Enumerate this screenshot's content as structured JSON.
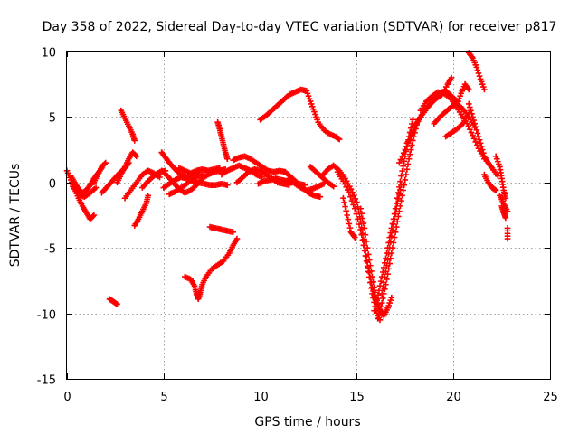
{
  "chart_data": {
    "type": "scatter",
    "title": "Day 358 of 2022, Sidereal Day-to-day VTEC variation (SDTVAR) for receiver p817",
    "xlabel": "GPS time / hours",
    "ylabel": "SDTVAR / TECUs",
    "xlim": [
      0,
      25
    ],
    "ylim": [
      -15,
      10
    ],
    "xticks": [
      "0",
      "5",
      "10",
      "15",
      "20",
      "25"
    ],
    "yticks": [
      "-15",
      "-10",
      "-5",
      "0",
      "5",
      "10"
    ],
    "grid": true,
    "marker": "plus",
    "color": "#ff0000",
    "tracks": [
      [
        [
          0.0,
          0.9
        ],
        [
          0.2,
          0.2
        ],
        [
          0.4,
          -0.5
        ],
        [
          0.6,
          -1.2
        ],
        [
          0.8,
          -1.8
        ],
        [
          1.0,
          -2.3
        ],
        [
          1.2,
          -2.8
        ],
        [
          1.4,
          -2.5
        ]
      ],
      [
        [
          0.2,
          0.5
        ],
        [
          0.4,
          0.0
        ],
        [
          0.6,
          -0.5
        ],
        [
          0.8,
          -0.8
        ],
        [
          1.0,
          -0.6
        ],
        [
          1.2,
          -0.2
        ],
        [
          1.4,
          0.3
        ],
        [
          1.6,
          0.7
        ],
        [
          1.8,
          1.1
        ]
      ],
      [
        [
          0.3,
          -0.3
        ],
        [
          0.6,
          -0.9
        ],
        [
          0.9,
          -1.1
        ],
        [
          1.2,
          -0.8
        ],
        [
          1.5,
          -0.4
        ]
      ],
      [
        [
          1.4,
          0.0
        ],
        [
          1.6,
          0.6
        ],
        [
          1.8,
          1.2
        ],
        [
          2.0,
          1.5
        ]
      ],
      [
        [
          1.8,
          -0.8
        ],
        [
          2.1,
          -0.3
        ],
        [
          2.4,
          0.2
        ],
        [
          2.7,
          0.7
        ],
        [
          3.0,
          1.1
        ],
        [
          3.2,
          1.5
        ]
      ],
      [
        [
          2.6,
          0.0
        ],
        [
          2.8,
          0.6
        ],
        [
          3.0,
          1.2
        ],
        [
          3.2,
          1.8
        ],
        [
          3.4,
          2.3
        ],
        [
          3.6,
          2.0
        ]
      ],
      [
        [
          2.8,
          5.5
        ],
        [
          3.0,
          4.9
        ],
        [
          3.2,
          4.3
        ],
        [
          3.4,
          3.7
        ],
        [
          3.5,
          3.2
        ]
      ],
      [
        [
          2.2,
          -8.9
        ],
        [
          2.4,
          -9.1
        ],
        [
          2.6,
          -9.3
        ]
      ],
      [
        [
          3.5,
          -3.3
        ],
        [
          3.7,
          -2.8
        ],
        [
          3.9,
          -2.2
        ],
        [
          4.1,
          -1.6
        ],
        [
          4.2,
          -1.0
        ]
      ],
      [
        [
          3.0,
          -1.2
        ],
        [
          3.3,
          -0.6
        ],
        [
          3.6,
          0.0
        ],
        [
          3.9,
          0.6
        ],
        [
          4.2,
          0.9
        ],
        [
          4.5,
          0.7
        ],
        [
          4.8,
          0.4
        ]
      ],
      [
        [
          3.9,
          -0.4
        ],
        [
          4.2,
          0.1
        ],
        [
          4.5,
          0.5
        ],
        [
          4.8,
          0.8
        ],
        [
          5.1,
          0.9
        ]
      ],
      [
        [
          4.9,
          2.3
        ],
        [
          5.1,
          1.9
        ],
        [
          5.3,
          1.5
        ],
        [
          5.6,
          1.0
        ],
        [
          5.9,
          0.6
        ],
        [
          6.2,
          0.4
        ],
        [
          6.5,
          0.6
        ],
        [
          6.8,
          0.9
        ]
      ],
      [
        [
          4.9,
          0.9
        ],
        [
          5.2,
          0.5
        ],
        [
          5.5,
          0.0
        ],
        [
          5.8,
          -0.5
        ],
        [
          6.1,
          -0.8
        ],
        [
          6.4,
          -0.6
        ],
        [
          6.7,
          -0.2
        ],
        [
          7.0,
          0.3
        ],
        [
          7.3,
          0.6
        ],
        [
          7.6,
          0.8
        ],
        [
          7.9,
          0.9
        ],
        [
          8.2,
          1.0
        ]
      ],
      [
        [
          5.0,
          -0.4
        ],
        [
          5.3,
          -0.1
        ],
        [
          5.6,
          0.2
        ],
        [
          5.9,
          0.4
        ],
        [
          6.2,
          0.3
        ],
        [
          6.5,
          0.1
        ],
        [
          6.8,
          0.0
        ],
        [
          7.1,
          -0.1
        ],
        [
          7.4,
          -0.2
        ],
        [
          7.7,
          -0.2
        ],
        [
          8.0,
          -0.1
        ],
        [
          8.3,
          -0.2
        ]
      ],
      [
        [
          5.3,
          -0.9
        ],
        [
          5.6,
          -0.7
        ],
        [
          5.9,
          -0.4
        ],
        [
          6.2,
          -0.1
        ],
        [
          6.5,
          0.3
        ],
        [
          6.8,
          0.5
        ],
        [
          7.1,
          0.6
        ]
      ],
      [
        [
          5.8,
          1.1
        ],
        [
          6.1,
          0.9
        ],
        [
          6.4,
          0.7
        ],
        [
          6.7,
          0.9
        ],
        [
          7.0,
          1.0
        ],
        [
          7.3,
          0.9
        ],
        [
          7.6,
          1.0
        ],
        [
          7.9,
          1.1
        ]
      ],
      [
        [
          6.1,
          -7.2
        ],
        [
          6.4,
          -7.4
        ],
        [
          6.6,
          -7.9
        ],
        [
          6.7,
          -8.5
        ],
        [
          6.8,
          -8.9
        ],
        [
          6.9,
          -8.4
        ],
        [
          7.0,
          -7.8
        ],
        [
          7.2,
          -7.2
        ],
        [
          7.5,
          -6.6
        ],
        [
          7.8,
          -6.3
        ],
        [
          8.1,
          -6.0
        ],
        [
          8.4,
          -5.4
        ],
        [
          8.6,
          -4.8
        ],
        [
          8.8,
          -4.3
        ]
      ],
      [
        [
          7.4,
          -3.4
        ],
        [
          7.7,
          -3.5
        ],
        [
          8.0,
          -3.6
        ],
        [
          8.3,
          -3.7
        ],
        [
          8.6,
          -3.8
        ]
      ],
      [
        [
          7.8,
          4.6
        ],
        [
          7.9,
          4.1
        ],
        [
          8.0,
          3.5
        ],
        [
          8.1,
          2.9
        ],
        [
          8.2,
          2.3
        ],
        [
          8.3,
          1.8
        ]
      ],
      [
        [
          8.0,
          0.6
        ],
        [
          8.3,
          0.9
        ],
        [
          8.6,
          1.1
        ],
        [
          8.9,
          1.3
        ],
        [
          9.2,
          1.1
        ],
        [
          9.5,
          0.9
        ],
        [
          9.8,
          0.6
        ],
        [
          10.1,
          0.4
        ]
      ],
      [
        [
          8.6,
          1.7
        ],
        [
          8.9,
          1.9
        ],
        [
          9.2,
          2.0
        ],
        [
          9.5,
          1.8
        ],
        [
          9.8,
          1.5
        ],
        [
          10.1,
          1.2
        ],
        [
          10.4,
          0.9
        ],
        [
          10.7,
          0.8
        ],
        [
          11.0,
          0.9
        ],
        [
          11.3,
          0.8
        ]
      ],
      [
        [
          8.8,
          0.0
        ],
        [
          9.1,
          0.4
        ],
        [
          9.4,
          0.8
        ],
        [
          9.7,
          1.0
        ],
        [
          10.0,
          0.9
        ],
        [
          10.3,
          0.6
        ],
        [
          10.6,
          0.3
        ],
        [
          10.9,
          0.0
        ],
        [
          11.2,
          -0.1
        ],
        [
          11.5,
          -0.2
        ]
      ],
      [
        [
          9.9,
          -0.1
        ],
        [
          10.2,
          0.1
        ],
        [
          10.5,
          0.2
        ],
        [
          10.8,
          0.3
        ],
        [
          11.1,
          0.2
        ],
        [
          11.4,
          0.1
        ],
        [
          11.7,
          0.0
        ],
        [
          12.0,
          -0.1
        ],
        [
          12.3,
          -0.2
        ]
      ],
      [
        [
          10.0,
          4.8
        ],
        [
          10.3,
          5.1
        ],
        [
          10.6,
          5.5
        ],
        [
          10.9,
          5.9
        ],
        [
          11.2,
          6.3
        ],
        [
          11.5,
          6.7
        ],
        [
          11.8,
          6.9
        ],
        [
          12.1,
          7.1
        ],
        [
          12.4,
          7.0
        ],
        [
          12.6,
          6.2
        ],
        [
          12.8,
          5.4
        ],
        [
          13.0,
          4.6
        ],
        [
          13.3,
          4.0
        ],
        [
          13.6,
          3.7
        ],
        [
          13.9,
          3.5
        ],
        [
          14.1,
          3.3
        ]
      ],
      [
        [
          11.3,
          0.8
        ],
        [
          11.6,
          0.4
        ],
        [
          11.9,
          0.0
        ],
        [
          12.2,
          -0.4
        ],
        [
          12.5,
          -0.8
        ],
        [
          12.8,
          -1.0
        ],
        [
          13.1,
          -1.1
        ]
      ],
      [
        [
          11.5,
          0.3
        ],
        [
          11.8,
          -0.1
        ],
        [
          12.1,
          -0.4
        ],
        [
          12.4,
          -0.6
        ],
        [
          12.7,
          -0.5
        ],
        [
          13.0,
          -0.3
        ],
        [
          13.3,
          -0.1
        ]
      ],
      [
        [
          12.6,
          1.2
        ],
        [
          12.9,
          0.8
        ],
        [
          13.2,
          0.4
        ],
        [
          13.5,
          0.0
        ],
        [
          13.8,
          -0.3
        ]
      ],
      [
        [
          13.2,
          0.5
        ],
        [
          13.5,
          1.0
        ],
        [
          13.8,
          1.3
        ],
        [
          14.1,
          0.9
        ],
        [
          14.4,
          0.3
        ],
        [
          14.7,
          -0.5
        ],
        [
          15.0,
          -1.5
        ],
        [
          15.2,
          -3.0
        ],
        [
          15.4,
          -4.8
        ],
        [
          15.6,
          -6.5
        ],
        [
          15.8,
          -8.0
        ],
        [
          16.0,
          -9.2
        ],
        [
          16.2,
          -9.8
        ]
      ],
      [
        [
          14.0,
          0.8
        ],
        [
          14.3,
          0.1
        ],
        [
          14.6,
          -0.8
        ],
        [
          14.9,
          -2.0
        ],
        [
          15.2,
          -3.6
        ],
        [
          15.4,
          -5.2
        ],
        [
          15.6,
          -6.8
        ],
        [
          15.8,
          -8.5
        ],
        [
          16.0,
          -9.8
        ],
        [
          16.2,
          -10.5
        ]
      ],
      [
        [
          14.3,
          -1.2
        ],
        [
          14.5,
          -2.5
        ],
        [
          14.7,
          -3.8
        ],
        [
          14.9,
          -4.2
        ]
      ],
      [
        [
          15.2,
          -2.0
        ],
        [
          15.4,
          -3.5
        ],
        [
          15.6,
          -5.5
        ],
        [
          15.8,
          -7.2
        ],
        [
          16.0,
          -8.8
        ],
        [
          16.2,
          -9.7
        ],
        [
          16.4,
          -10.2
        ],
        [
          16.6,
          -9.6
        ],
        [
          16.8,
          -8.8
        ]
      ],
      [
        [
          15.9,
          -9.8
        ],
        [
          16.1,
          -8.6
        ],
        [
          16.3,
          -7.2
        ],
        [
          16.5,
          -5.8
        ],
        [
          16.7,
          -4.2
        ],
        [
          16.9,
          -2.8
        ],
        [
          17.1,
          -1.2
        ],
        [
          17.3,
          0.5
        ],
        [
          17.5,
          2.0
        ],
        [
          17.7,
          3.5
        ],
        [
          17.9,
          4.8
        ]
      ],
      [
        [
          16.1,
          -10.4
        ],
        [
          16.3,
          -9.2
        ],
        [
          16.5,
          -7.8
        ],
        [
          16.7,
          -6.2
        ],
        [
          16.9,
          -4.6
        ],
        [
          17.1,
          -3.0
        ],
        [
          17.3,
          -1.4
        ],
        [
          17.5,
          0.2
        ],
        [
          17.7,
          1.8
        ],
        [
          17.9,
          3.2
        ],
        [
          18.1,
          4.4
        ]
      ],
      [
        [
          16.3,
          -8.5
        ],
        [
          16.5,
          -6.8
        ],
        [
          16.7,
          -5.0
        ],
        [
          16.9,
          -3.2
        ],
        [
          17.1,
          -1.6
        ],
        [
          17.3,
          -0.2
        ]
      ],
      [
        [
          17.2,
          1.5
        ],
        [
          17.5,
          2.5
        ],
        [
          17.8,
          3.5
        ],
        [
          18.1,
          4.5
        ],
        [
          18.4,
          5.2
        ],
        [
          18.7,
          5.8
        ],
        [
          19.0,
          6.3
        ],
        [
          19.3,
          6.8
        ],
        [
          19.6,
          7.0
        ],
        [
          19.9,
          6.6
        ],
        [
          20.2,
          6.2
        ]
      ],
      [
        [
          17.6,
          3.0
        ],
        [
          17.9,
          4.0
        ],
        [
          18.2,
          4.8
        ],
        [
          18.5,
          5.5
        ],
        [
          18.8,
          6.0
        ],
        [
          19.1,
          6.4
        ],
        [
          19.4,
          6.7
        ],
        [
          19.7,
          7.5
        ],
        [
          19.9,
          8.0
        ]
      ],
      [
        [
          18.3,
          5.5
        ],
        [
          18.6,
          6.2
        ],
        [
          18.9,
          6.6
        ],
        [
          19.2,
          6.9
        ],
        [
          19.5,
          6.8
        ],
        [
          19.8,
          6.5
        ],
        [
          20.1,
          5.9
        ],
        [
          20.4,
          5.2
        ],
        [
          20.7,
          4.5
        ],
        [
          21.0,
          3.6
        ],
        [
          21.3,
          2.6
        ],
        [
          21.6,
          1.8
        ]
      ],
      [
        [
          19.0,
          4.5
        ],
        [
          19.3,
          5.0
        ],
        [
          19.6,
          5.4
        ],
        [
          19.9,
          5.8
        ],
        [
          20.2,
          6.0
        ],
        [
          20.5,
          5.6
        ],
        [
          20.8,
          5.0
        ],
        [
          21.1,
          4.2
        ]
      ],
      [
        [
          19.6,
          3.5
        ],
        [
          19.9,
          3.8
        ],
        [
          20.2,
          4.1
        ],
        [
          20.5,
          4.5
        ],
        [
          20.8,
          5.3
        ]
      ],
      [
        [
          20.2,
          6.0
        ],
        [
          20.4,
          6.8
        ],
        [
          20.6,
          7.5
        ],
        [
          20.8,
          7.1
        ]
      ],
      [
        [
          20.8,
          9.9
        ],
        [
          21.0,
          9.5
        ],
        [
          21.2,
          8.8
        ],
        [
          21.4,
          7.9
        ],
        [
          21.6,
          7.1
        ]
      ],
      [
        [
          20.8,
          6.0
        ],
        [
          21.0,
          5.0
        ],
        [
          21.2,
          4.0
        ],
        [
          21.4,
          3.0
        ],
        [
          21.6,
          2.0
        ],
        [
          21.8,
          1.5
        ],
        [
          22.0,
          1.1
        ],
        [
          22.3,
          0.5
        ]
      ],
      [
        [
          21.6,
          0.6
        ],
        [
          21.8,
          0.0
        ],
        [
          22.0,
          -0.4
        ],
        [
          22.2,
          -0.6
        ]
      ],
      [
        [
          22.2,
          2.0
        ],
        [
          22.4,
          1.2
        ],
        [
          22.5,
          0.3
        ],
        [
          22.6,
          -0.6
        ],
        [
          22.7,
          -1.2
        ]
      ],
      [
        [
          22.4,
          -1.0
        ],
        [
          22.6,
          -1.6
        ],
        [
          22.8,
          -2.2
        ]
      ],
      [
        [
          22.5,
          -1.8
        ],
        [
          22.6,
          -2.3
        ],
        [
          22.7,
          -2.7
        ]
      ],
      [
        [
          22.8,
          -3.5
        ],
        [
          22.8,
          -4.3
        ]
      ]
    ]
  }
}
